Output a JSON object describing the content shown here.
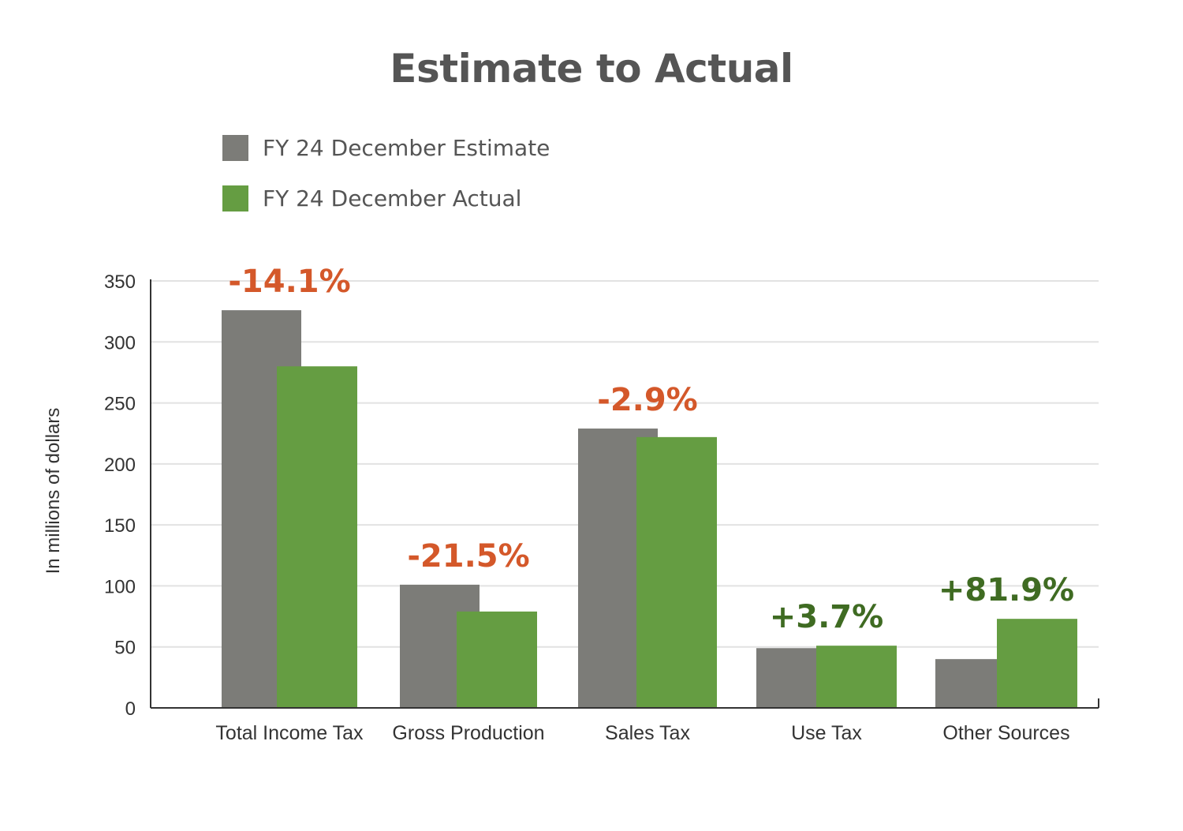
{
  "chart_data": {
    "type": "bar",
    "title": "Estimate to Actual",
    "ylabel": "In millions of dollars",
    "xlabel": "",
    "ylim": [
      0,
      350
    ],
    "yticks": [
      0,
      50,
      100,
      150,
      200,
      250,
      300,
      350
    ],
    "grid": true,
    "legend_position": "top-left",
    "categories": [
      "Total Income Tax",
      "Gross Production",
      "Sales Tax",
      "Use Tax",
      "Other Sources"
    ],
    "series": [
      {
        "name": "FY 24 December Estimate",
        "color": "#7c7c78",
        "values": [
          326,
          101,
          229,
          49,
          40
        ]
      },
      {
        "name": "FY 24 December Actual",
        "color": "#659d42",
        "values": [
          280,
          79,
          222,
          51,
          73
        ]
      }
    ],
    "annotations": [
      {
        "text": "-14.1%",
        "color": "#d4582a"
      },
      {
        "text": "-21.5%",
        "color": "#d4582a"
      },
      {
        "text": "-2.9%",
        "color": "#d4582a"
      },
      {
        "text": "+3.7%",
        "color": "#3f6b22"
      },
      {
        "text": "+81.9%",
        "color": "#3f6b22"
      }
    ]
  }
}
